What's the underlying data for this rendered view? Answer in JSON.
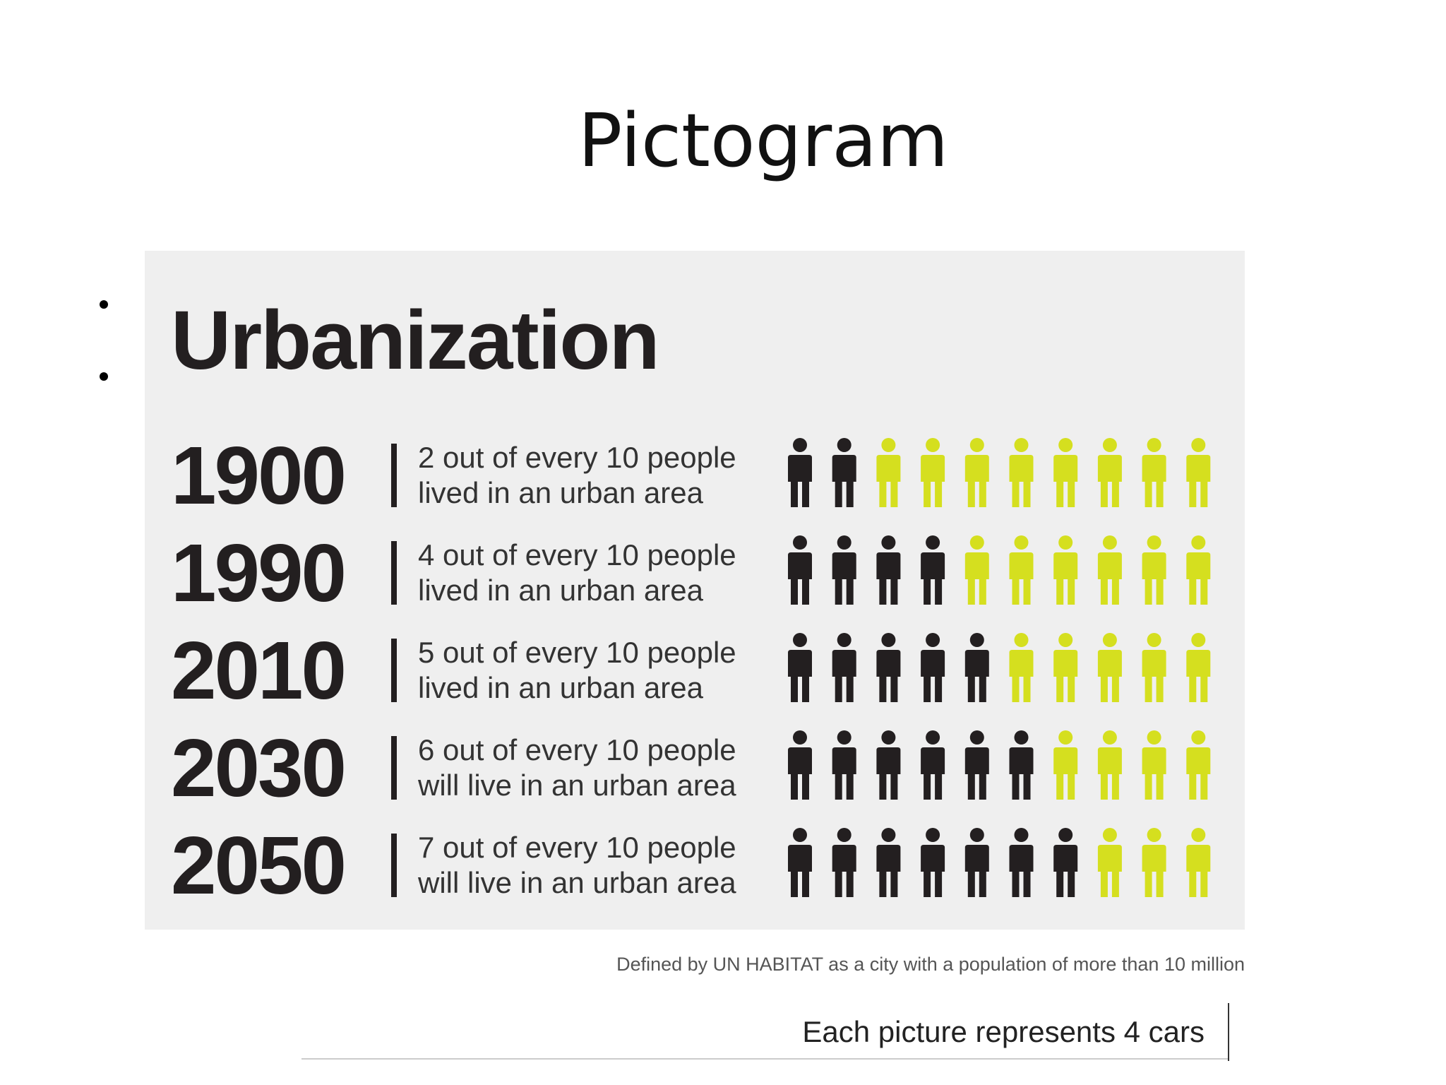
{
  "title": "Pictogram",
  "chart_data": {
    "type": "pictogram",
    "title": "Urbanization",
    "categories": [
      "1900",
      "1990",
      "2010",
      "2030",
      "2050"
    ],
    "descriptions": [
      [
        "2 out of every 10 people",
        "lived in an urban area"
      ],
      [
        "4 out of every 10 people",
        "lived in an urban area"
      ],
      [
        "5 out of every 10 people",
        "lived in an urban area"
      ],
      [
        "6 out of every 10 people",
        "will live in an urban area"
      ],
      [
        "7 out of every 10 people",
        "will live in an urban area"
      ]
    ],
    "values": [
      2,
      4,
      5,
      6,
      7
    ],
    "total": 10,
    "color": "#231f20",
    "rest_color": "#d5df1f",
    "note": "Defined by UN HABITAT as a city with a population of more than 10 million"
  },
  "legend_note": "Each picture represents 4 cars"
}
